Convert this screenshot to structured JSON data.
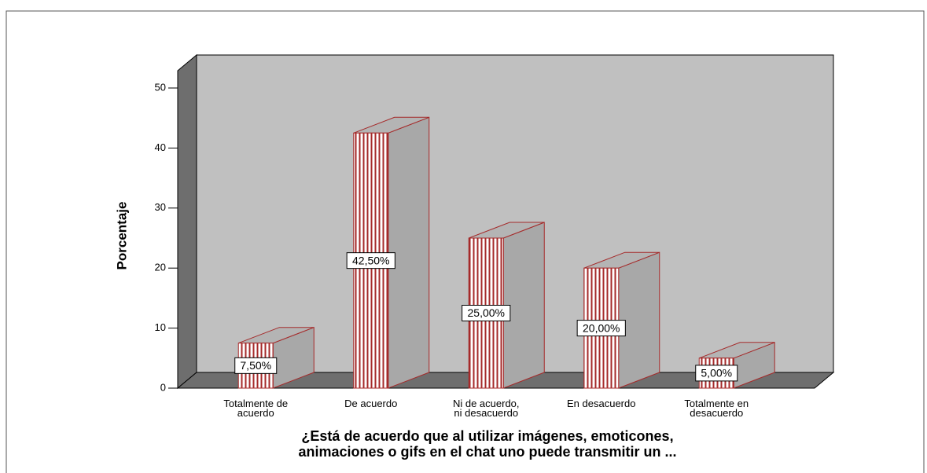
{
  "chart_data": {
    "type": "bar",
    "title": "¿Está de acuerdo que al utilizar imágenes, emoticones,\nanimaciones o gifs en el chat uno puede transmitir un ...",
    "ylabel": "Porcentaje",
    "categories": [
      "Totalmente de\nacuerdo",
      "De acuerdo",
      "Ni de acuerdo,\nni desacuerdo",
      "En desacuerdo",
      "Totalmente en\ndesacuerdo"
    ],
    "values": [
      7.5,
      42.5,
      25,
      20,
      5
    ],
    "value_labels": [
      "7,50%",
      "42,50%",
      "25,00%",
      "20,00%",
      "5,00%"
    ],
    "color": "#a52a2a",
    "ylim": [
      0,
      50
    ],
    "yticks": [
      0,
      10,
      20,
      30,
      40,
      50
    ]
  }
}
